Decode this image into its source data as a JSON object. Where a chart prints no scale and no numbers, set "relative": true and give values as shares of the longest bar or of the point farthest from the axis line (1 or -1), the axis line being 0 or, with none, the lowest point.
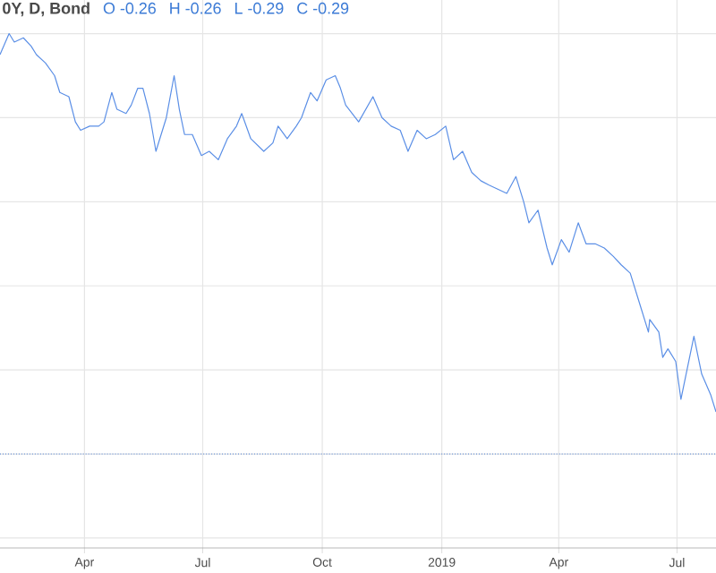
{
  "chart_data": {
    "type": "line",
    "title": "0Y, D, Bond",
    "annotations": [
      "O -0.26",
      "H -0.26",
      "L -0.29",
      "C -0.29"
    ],
    "relative": true,
    "grid": true,
    "marker": "none",
    "line_style": "solid",
    "xlim": [
      "2018-01-26",
      "2019-07-31"
    ],
    "xticks": [
      {
        "value": "2018-04-01",
        "label": "Apr"
      },
      {
        "value": "2018-07-01",
        "label": "Jul"
      },
      {
        "value": "2018-10-01",
        "label": "Oct"
      },
      {
        "value": "2019-01-01",
        "label": "2019"
      },
      {
        "value": "2019-04-01",
        "label": "Apr"
      },
      {
        "value": "2019-07-01",
        "label": "Jul"
      }
    ],
    "ref_lines": [
      {
        "axis": "y",
        "value": 0,
        "color": "#4a7fd8",
        "line_style": "dotted"
      }
    ],
    "series": [
      {
        "color": "#5b8fe6",
        "x": [
          "2018-01-26",
          "2018-02-02",
          "2018-02-06",
          "2018-02-13",
          "2018-02-19",
          "2018-02-23",
          "2018-03-02",
          "2018-03-09",
          "2018-03-13",
          "2018-03-20",
          "2018-03-25",
          "2018-03-29",
          "2018-04-05",
          "2018-04-12",
          "2018-04-16",
          "2018-04-22",
          "2018-04-26",
          "2018-05-03",
          "2018-05-07",
          "2018-05-12",
          "2018-05-16",
          "2018-05-21",
          "2018-05-26",
          "2018-05-30",
          "2018-06-03",
          "2018-06-09",
          "2018-06-13",
          "2018-06-17",
          "2018-06-23",
          "2018-06-30",
          "2018-07-06",
          "2018-07-13",
          "2018-07-20",
          "2018-07-27",
          "2018-07-31",
          "2018-08-07",
          "2018-08-17",
          "2018-08-24",
          "2018-08-28",
          "2018-09-04",
          "2018-09-11",
          "2018-09-15",
          "2018-09-22",
          "2018-09-27",
          "2018-10-04",
          "2018-10-11",
          "2018-10-15",
          "2018-10-19",
          "2018-10-29",
          "2018-11-09",
          "2018-11-16",
          "2018-11-23",
          "2018-11-30",
          "2018-12-06",
          "2018-12-13",
          "2018-12-20",
          "2018-12-27",
          "2019-01-04",
          "2019-01-10",
          "2019-01-17",
          "2019-01-24",
          "2019-01-31",
          "2019-02-06",
          "2019-02-13",
          "2019-02-20",
          "2019-02-27",
          "2019-03-05",
          "2019-03-09",
          "2019-03-16",
          "2019-03-23",
          "2019-03-27",
          "2019-04-03",
          "2019-04-09",
          "2019-04-16",
          "2019-04-22",
          "2019-04-29",
          "2019-05-06",
          "2019-05-13",
          "2019-05-19",
          "2019-05-26",
          "2019-06-02",
          "2019-06-09",
          "2019-06-10",
          "2019-06-17",
          "2019-06-20",
          "2019-06-24",
          "2019-06-30",
          "2019-07-04",
          "2019-07-14",
          "2019-07-20",
          "2019-07-27",
          "2019-07-31"
        ],
        "values": [
          0.95,
          1,
          0.98,
          0.99,
          0.97,
          0.95,
          0.93,
          0.9,
          0.86,
          0.85,
          0.79,
          0.77,
          0.78,
          0.78,
          0.79,
          0.86,
          0.82,
          0.81,
          0.83,
          0.87,
          0.87,
          0.81,
          0.72,
          0.76,
          0.8,
          0.9,
          0.82,
          0.76,
          0.76,
          0.71,
          0.72,
          0.7,
          0.75,
          0.78,
          0.81,
          0.75,
          0.72,
          0.74,
          0.78,
          0.75,
          0.78,
          0.8,
          0.86,
          0.84,
          0.89,
          0.9,
          0.87,
          0.83,
          0.79,
          0.85,
          0.8,
          0.78,
          0.77,
          0.72,
          0.77,
          0.75,
          0.76,
          0.78,
          0.7,
          0.72,
          0.67,
          0.65,
          0.64,
          0.63,
          0.62,
          0.66,
          0.6,
          0.55,
          0.58,
          0.49,
          0.45,
          0.51,
          0.48,
          0.55,
          0.5,
          0.5,
          0.49,
          0.47,
          0.45,
          0.43,
          0.36,
          0.29,
          0.32,
          0.29,
          0.23,
          0.25,
          0.22,
          0.13,
          0.28,
          0.19,
          0.14,
          0.1
        ]
      }
    ]
  }
}
